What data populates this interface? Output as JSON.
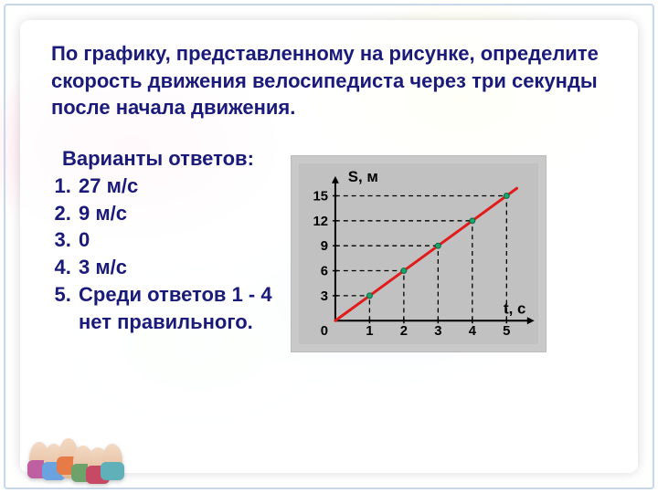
{
  "question_text": "По графику, представленному на рисунке, определите скорость движения велосипедиста через три секунды после начала движения.",
  "answers_heading": "Варианты ответов:",
  "answers": [
    "27 м/с",
    " 9 м/с",
    " 0",
    "3 м/с",
    "Среди ответов 1 - 4 нет правильного."
  ],
  "text_color": "#1a1a7a",
  "font_size_pt": 16,
  "font_weight": 700,
  "chart": {
    "type": "line",
    "background_color": "#c1c1c1",
    "border_color": "#bbbbbb",
    "x_axis": {
      "label": "t, с",
      "min": 0,
      "max": 5.6,
      "ticks": [
        0,
        1,
        2,
        3,
        4,
        5
      ],
      "tick_labels": [
        "0",
        "1",
        "2",
        "3",
        "4",
        "5"
      ],
      "label_color": "#000000",
      "label_fontsize": 15,
      "label_fontweight": 700
    },
    "y_axis": {
      "label": "S, м",
      "min": 0,
      "max": 16.5,
      "ticks": [
        3,
        6,
        9,
        12,
        15
      ],
      "tick_labels": [
        "3",
        "6",
        "9",
        "12",
        "15"
      ],
      "label_color": "#000000",
      "label_fontsize": 15,
      "label_fontweight": 700
    },
    "axis_color": "#000000",
    "axis_width": 2,
    "dash_color": "#000000",
    "dash_pattern": "5 4",
    "line": {
      "color": "#e11a1a",
      "width": 3,
      "points_x": [
        0,
        1,
        2,
        3,
        4,
        5
      ],
      "points_y": [
        0,
        3,
        6,
        9,
        12,
        15
      ]
    },
    "markers": {
      "shape": "circle",
      "r": 3,
      "fill": "#1aa56a",
      "stroke": "#0b6a42",
      "at_x": [
        1,
        2,
        3,
        4,
        5
      ],
      "at_y": [
        3,
        6,
        9,
        12,
        15
      ]
    },
    "origin_label": "0"
  }
}
